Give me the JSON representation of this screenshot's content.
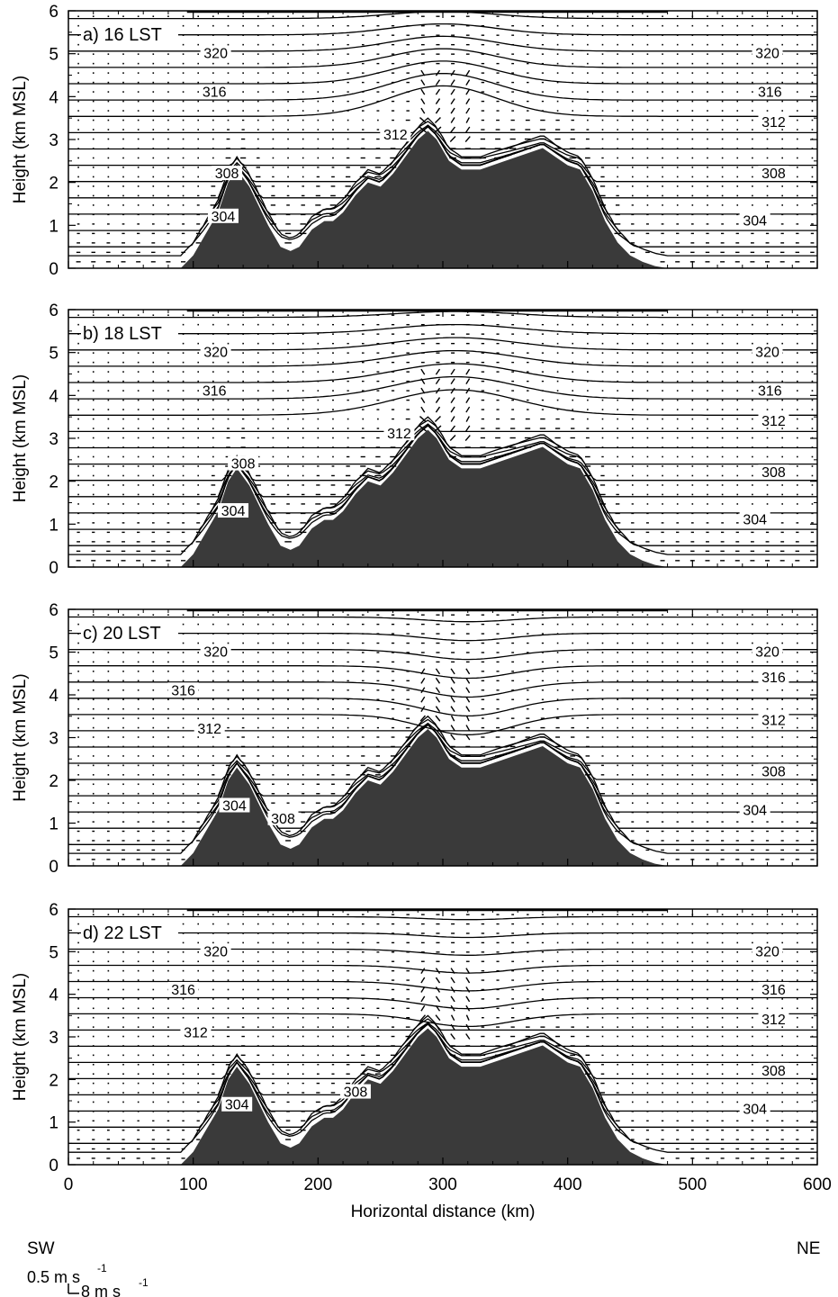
{
  "chart_data": {
    "type": "line",
    "figure": "vertical cross sections of potential temperature and wind vectors over terrain",
    "x_axis": {
      "label": "Horizontal distance (km)",
      "range": [
        0,
        600
      ],
      "ticks": [
        0,
        100,
        200,
        300,
        400,
        500,
        600
      ],
      "left_end_label": "SW",
      "right_end_label": "NE"
    },
    "y_axis": {
      "label": "Height (km MSL)",
      "range": [
        0,
        6
      ],
      "ticks": [
        0,
        1,
        2,
        3,
        4,
        5,
        6
      ]
    },
    "vector_scale": {
      "vertical_label": "0.5 m s",
      "horizontal_label": "8 m s",
      "unit_exponent": "-1"
    },
    "terrain": {
      "x": [
        90,
        100,
        110,
        120,
        128,
        135,
        145,
        160,
        170,
        178,
        185,
        195,
        205,
        212,
        220,
        230,
        240,
        250,
        260,
        270,
        280,
        288,
        295,
        305,
        315,
        330,
        350,
        370,
        380,
        390,
        400,
        410,
        420,
        430,
        440,
        450,
        460,
        470,
        480
      ],
      "height": [
        0,
        0.3,
        0.8,
        1.3,
        2.0,
        2.3,
        1.9,
        1.0,
        0.5,
        0.4,
        0.5,
        0.9,
        1.1,
        1.1,
        1.3,
        1.7,
        2.0,
        1.9,
        2.2,
        2.6,
        3.0,
        3.2,
        3.0,
        2.5,
        2.3,
        2.3,
        2.5,
        2.7,
        2.8,
        2.6,
        2.4,
        2.3,
        1.8,
        1.1,
        0.6,
        0.3,
        0.15,
        0.05,
        0
      ]
    },
    "contour_interval_K": 2,
    "panels": [
      {
        "label": "a) 16 LST",
        "contour_labels": [
          {
            "text": "320",
            "x": 118,
            "z": 5.0
          },
          {
            "text": "320",
            "x": 560,
            "z": 5.0
          },
          {
            "text": "316",
            "x": 117,
            "z": 4.1
          },
          {
            "text": "316",
            "x": 562,
            "z": 4.1
          },
          {
            "text": "312",
            "x": 262,
            "z": 3.1
          },
          {
            "text": "312",
            "x": 565,
            "z": 3.4
          },
          {
            "text": "308",
            "x": 127,
            "z": 2.2
          },
          {
            "text": "308",
            "x": 565,
            "z": 2.2
          },
          {
            "text": "304",
            "x": 124,
            "z": 1.2
          },
          {
            "text": "304",
            "x": 550,
            "z": 1.1
          }
        ],
        "bump": {
          "x": 300,
          "width": 60,
          "amplitude": 0.6,
          "ridge_boundary_z": 3.6
        }
      },
      {
        "label": "b) 18 LST",
        "contour_labels": [
          {
            "text": "320",
            "x": 118,
            "z": 5.0
          },
          {
            "text": "320",
            "x": 560,
            "z": 5.0
          },
          {
            "text": "316",
            "x": 117,
            "z": 4.1
          },
          {
            "text": "316",
            "x": 562,
            "z": 4.1
          },
          {
            "text": "312",
            "x": 265,
            "z": 3.1
          },
          {
            "text": "312",
            "x": 565,
            "z": 3.4
          },
          {
            "text": "308",
            "x": 140,
            "z": 2.4
          },
          {
            "text": "308",
            "x": 565,
            "z": 2.2
          },
          {
            "text": "304",
            "x": 132,
            "z": 1.3
          },
          {
            "text": "304",
            "x": 550,
            "z": 1.1
          }
        ],
        "bump": {
          "x": 310,
          "width": 70,
          "amplitude": 0.5,
          "ridge_boundary_z": 3.3
        }
      },
      {
        "label": "c) 20 LST",
        "contour_labels": [
          {
            "text": "320",
            "x": 118,
            "z": 5.0
          },
          {
            "text": "320",
            "x": 560,
            "z": 5.0
          },
          {
            "text": "316",
            "x": 92,
            "z": 4.1
          },
          {
            "text": "316",
            "x": 565,
            "z": 4.4
          },
          {
            "text": "312",
            "x": 113,
            "z": 3.2
          },
          {
            "text": "312",
            "x": 565,
            "z": 3.4
          },
          {
            "text": "308",
            "x": 172,
            "z": 1.1
          },
          {
            "text": "308",
            "x": 565,
            "z": 2.2
          },
          {
            "text": "304",
            "x": 133,
            "z": 1.4
          },
          {
            "text": "304",
            "x": 550,
            "z": 1.3
          }
        ],
        "bump": {
          "x": 320,
          "width": 50,
          "amplitude": -0.4,
          "ridge_boundary_z": 2.9
        }
      },
      {
        "label": "d) 22 LST",
        "contour_labels": [
          {
            "text": "320",
            "x": 118,
            "z": 5.0
          },
          {
            "text": "320",
            "x": 560,
            "z": 5.0
          },
          {
            "text": "316",
            "x": 92,
            "z": 4.1
          },
          {
            "text": "316",
            "x": 565,
            "z": 4.1
          },
          {
            "text": "312",
            "x": 102,
            "z": 3.1
          },
          {
            "text": "312",
            "x": 565,
            "z": 3.4
          },
          {
            "text": "308",
            "x": 230,
            "z": 1.7
          },
          {
            "text": "308",
            "x": 565,
            "z": 2.2
          },
          {
            "text": "304",
            "x": 135,
            "z": 1.4
          },
          {
            "text": "304",
            "x": 550,
            "z": 1.3
          }
        ],
        "bump": {
          "x": 320,
          "width": 50,
          "amplitude": -0.25,
          "ridge_boundary_z": 2.8
        }
      }
    ]
  }
}
